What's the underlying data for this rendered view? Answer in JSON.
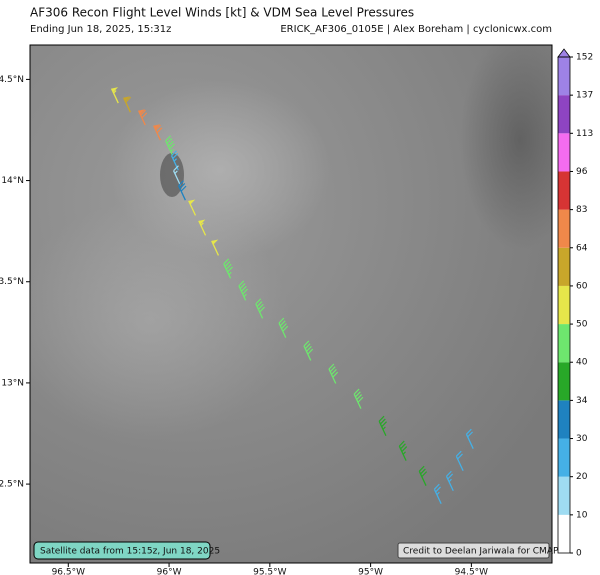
{
  "chart_data": {
    "type": "barbs",
    "title": "AF306 Recon Flight Level Winds [kt] & VDM Sea Level Pressures",
    "subtitle_left": "Ending Jun 18, 2025, 15:31z",
    "subtitle_right": "ERICK_AF306_0105E | Alex Boreham | cyclonicwx.com",
    "satellite_note": "Satellite data from 15:15z, Jun 18, 2025",
    "credit": "Credit to Deelan Jariwala for CMAP",
    "xlim": [
      -96.69,
      -94.1
    ],
    "ylim": [
      12.11,
      14.67
    ],
    "xticks": [
      {
        "value": -96.5,
        "label": "96.5°W"
      },
      {
        "value": -96,
        "label": "96°W"
      },
      {
        "value": -95.5,
        "label": "95.5°W"
      },
      {
        "value": -95,
        "label": "95°W"
      },
      {
        "value": -94.5,
        "label": "94.5°W"
      }
    ],
    "yticks": [
      {
        "value": 12.5,
        "label": "12.5°N"
      },
      {
        "value": 13,
        "label": "13°N"
      },
      {
        "value": 13.5,
        "label": "13.5°N"
      },
      {
        "value": 14,
        "label": "14°N"
      },
      {
        "value": 14.5,
        "label": "14.5°N"
      }
    ],
    "lon": [
      -96.252,
      -96.192,
      -96.118,
      -96.043,
      -95.983,
      -95.954,
      -95.944,
      -95.919,
      -95.869,
      -95.819,
      -95.755,
      -95.695,
      -95.62,
      -95.536,
      -95.421,
      -95.297,
      -95.173,
      -95.048,
      -94.924,
      -94.824,
      -94.725,
      -94.65,
      -94.59,
      -94.541,
      -94.491
    ],
    "lat": [
      14.383,
      14.338,
      14.274,
      14.2,
      14.125,
      14.051,
      13.977,
      13.903,
      13.828,
      13.729,
      13.63,
      13.517,
      13.408,
      13.319,
      13.224,
      13.111,
      12.997,
      12.873,
      12.739,
      12.616,
      12.492,
      12.403,
      12.467,
      12.566,
      12.675
    ],
    "speed": [
      55,
      60,
      70,
      72,
      45,
      25,
      15,
      30,
      52,
      55,
      52,
      48,
      45,
      42,
      44,
      43,
      42,
      40,
      38,
      36,
      34,
      28,
      25,
      22,
      20
    ],
    "colorbar": {
      "bounds": [
        0,
        10,
        20,
        30,
        34,
        40,
        50,
        60,
        64,
        83,
        96,
        113,
        137,
        152
      ],
      "colors": [
        "#ffffff",
        "#9fdcf2",
        "#45b0e6",
        "#1f82c0",
        "#28a828",
        "#6ee66e",
        "#e6e64a",
        "#c8a62a",
        "#f0884a",
        "#d63434",
        "#f56cf0",
        "#8e44c2",
        "#9e82e6"
      ]
    }
  }
}
